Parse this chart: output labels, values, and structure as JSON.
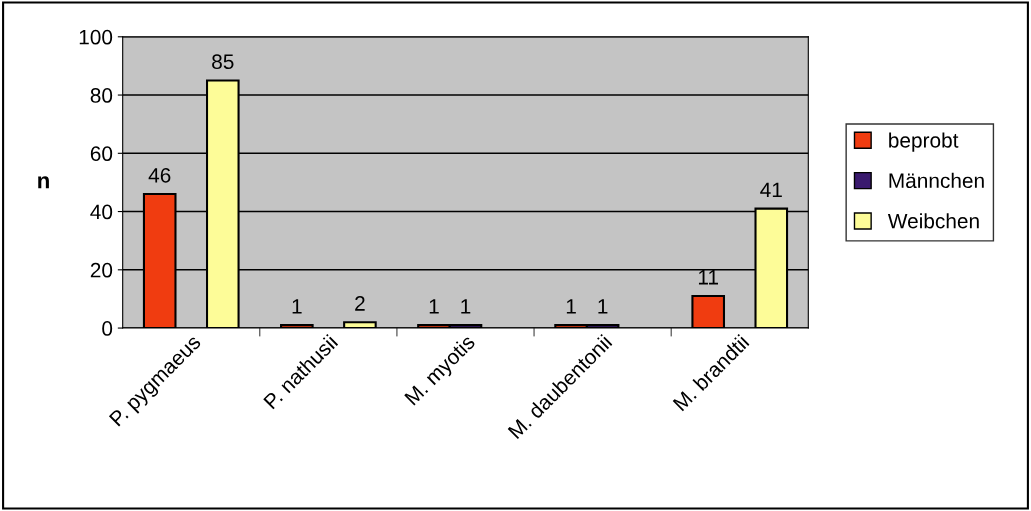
{
  "chart_data": {
    "type": "bar",
    "ylabel": "n",
    "categories": [
      "P. pygmaeus",
      "P. nathusii",
      "M. myotis",
      "M. daubentonii",
      "M. brandtii"
    ],
    "series": [
      {
        "name": "beprobt",
        "color": "#f03c10",
        "values": [
          46,
          1,
          1,
          1,
          11
        ]
      },
      {
        "name": "Männchen",
        "color": "#3a1a6e",
        "values": [
          null,
          null,
          1,
          1,
          null
        ]
      },
      {
        "name": "Weibchen",
        "color": "#fdfc98",
        "values": [
          85,
          2,
          null,
          null,
          41
        ]
      }
    ],
    "ylim": [
      0,
      100
    ],
    "yticks": [
      0,
      20,
      40,
      60,
      80,
      100
    ],
    "grid": "y",
    "legend": "right",
    "data_labels": true
  }
}
